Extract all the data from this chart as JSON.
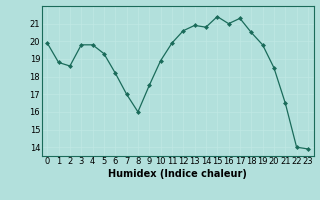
{
  "x": [
    0,
    1,
    2,
    3,
    4,
    5,
    6,
    7,
    8,
    9,
    10,
    11,
    12,
    13,
    14,
    15,
    16,
    17,
    18,
    19,
    20,
    21,
    22,
    23
  ],
  "y": [
    19.9,
    18.8,
    18.6,
    19.8,
    19.8,
    19.3,
    18.2,
    17.0,
    16.0,
    17.5,
    18.9,
    19.9,
    20.6,
    20.9,
    20.8,
    21.4,
    21.0,
    21.3,
    20.5,
    19.8,
    18.5,
    16.5,
    14.0,
    13.9
  ],
  "line_color": "#1a6b5a",
  "marker": "D",
  "marker_size": 2,
  "bg_color": "#b2e0dc",
  "grid_color": "#d0eeea",
  "title": "",
  "xlabel": "Humidex (Indice chaleur)",
  "ylabel": "",
  "ylim": [
    13.5,
    22.0
  ],
  "xlim": [
    -0.5,
    23.5
  ],
  "yticks": [
    14,
    15,
    16,
    17,
    18,
    19,
    20,
    21
  ],
  "xticks": [
    0,
    1,
    2,
    3,
    4,
    5,
    6,
    7,
    8,
    9,
    10,
    11,
    12,
    13,
    14,
    15,
    16,
    17,
    18,
    19,
    20,
    21,
    22,
    23
  ],
  "xlabel_fontsize": 7,
  "tick_fontsize": 6
}
